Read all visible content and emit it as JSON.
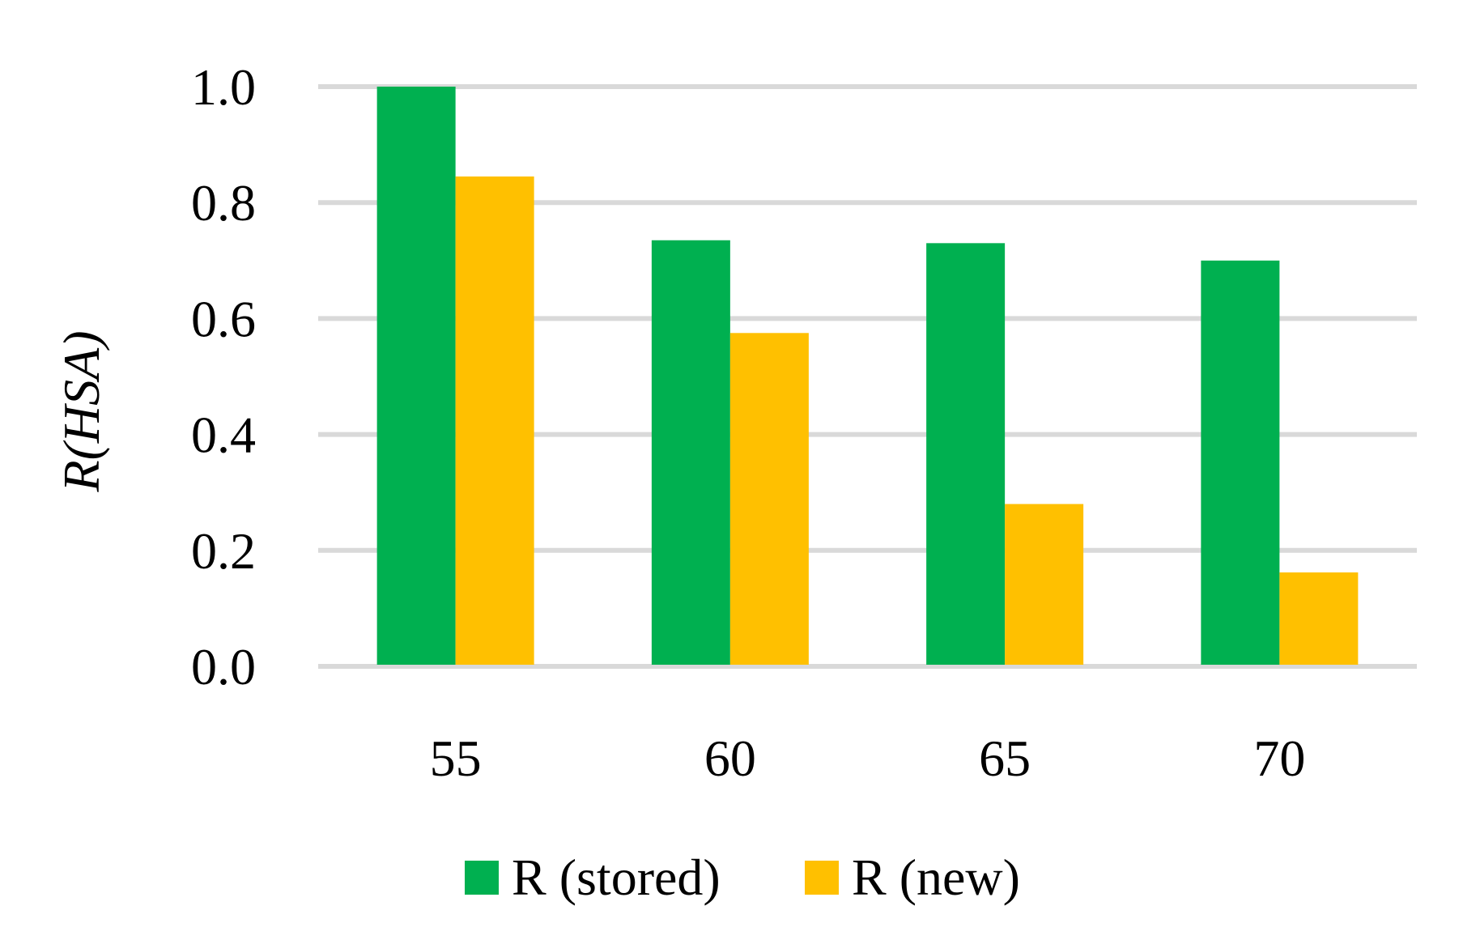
{
  "chart_data": {
    "type": "bar",
    "categories": [
      "55",
      "60",
      "65",
      "70"
    ],
    "series": [
      {
        "name": "R (stored)",
        "values": [
          1.0,
          0.735,
          0.73,
          0.7
        ],
        "color": "#00b050"
      },
      {
        "name": "R (new)",
        "values": [
          0.845,
          0.575,
          0.28,
          0.162
        ],
        "color": "#ffc000"
      }
    ],
    "ylabel": "R(HSA)",
    "ylim": [
      0,
      1.0
    ],
    "yticks": [
      "0.0",
      "0.2",
      "0.4",
      "0.6",
      "0.8",
      "1.0"
    ],
    "grid": true,
    "legend_position": "bottom"
  }
}
